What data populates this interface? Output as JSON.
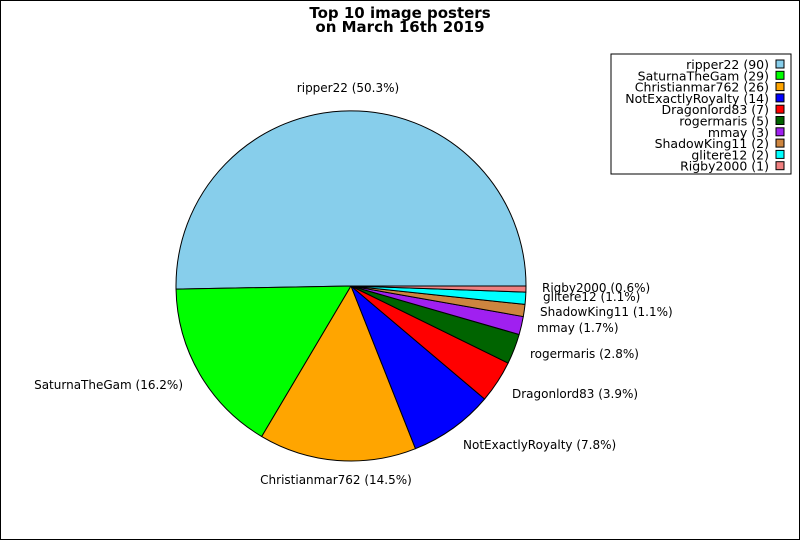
{
  "chart_data": {
    "type": "pie",
    "title_lines": [
      "Top 10 image posters",
      "on March 16th 2019"
    ],
    "slices": [
      {
        "name": "ripper22",
        "value": 90,
        "percent_label": "ripper22 (50.3%)",
        "legend_label": "ripper22 (90)",
        "color": "#87CEEB"
      },
      {
        "name": "SaturnaTheGam",
        "value": 29,
        "percent_label": "SaturnaTheGam (16.2%)",
        "legend_label": "SaturnaTheGam (29)",
        "color": "#00FF00"
      },
      {
        "name": "Christianmar762",
        "value": 26,
        "percent_label": "Christianmar762 (14.5%)",
        "legend_label": "Christianmar762 (26)",
        "color": "#FFA500"
      },
      {
        "name": "NotExactlyRoyalty",
        "value": 14,
        "percent_label": "NotExactlyRoyalty (7.8%)",
        "legend_label": "NotExactlyRoyalty (14)",
        "color": "#0000FF"
      },
      {
        "name": "Dragonlord83",
        "value": 7,
        "percent_label": "Dragonlord83 (3.9%)",
        "legend_label": "Dragonlord83 (7)",
        "color": "#FF0000"
      },
      {
        "name": "rogermaris",
        "value": 5,
        "percent_label": "rogermaris (2.8%)",
        "legend_label": "rogermaris (5)",
        "color": "#006400"
      },
      {
        "name": "mmay",
        "value": 3,
        "percent_label": "mmay (1.7%)",
        "legend_label": "mmay (3)",
        "color": "#A020F0"
      },
      {
        "name": "ShadowKing11",
        "value": 2,
        "percent_label": "ShadowKing11 (1.1%)",
        "legend_label": "ShadowKing11 (2)",
        "color": "#CD853F"
      },
      {
        "name": "glitere12",
        "value": 2,
        "percent_label": "glitere12 (1.1%)",
        "legend_label": "glitere12 (2)",
        "color": "#00FFFF"
      },
      {
        "name": "Rigby2000",
        "value": 1,
        "percent_label": "Rigby2000 (0.6%)",
        "legend_label": "Rigby2000 (1)",
        "color": "#F08080"
      }
    ],
    "start_angle": "right, counter-clockwise",
    "legend_position": "top-right"
  }
}
